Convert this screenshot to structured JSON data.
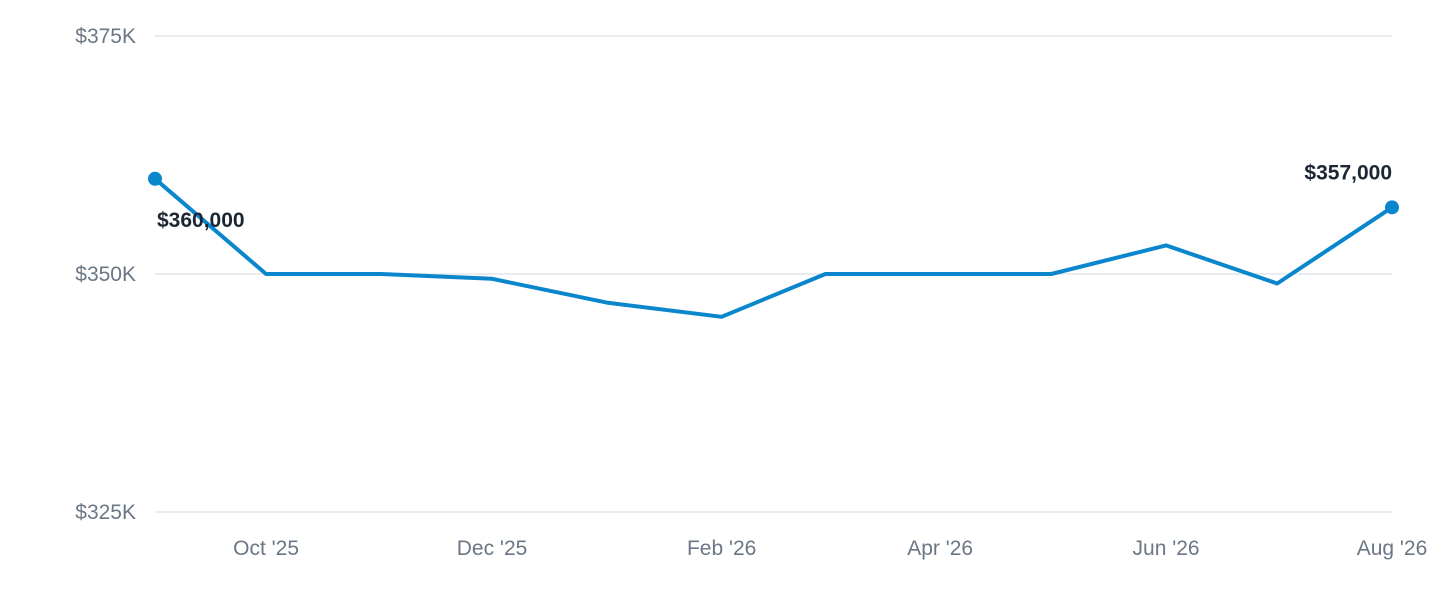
{
  "chart_data": {
    "type": "line",
    "x": [
      "2025-09-01",
      "2025-10-01",
      "2025-11-01",
      "2025-12-01",
      "2026-01-01",
      "2026-02-01",
      "2026-03-01",
      "2026-04-01",
      "2026-05-01",
      "2026-06-01",
      "2026-07-01",
      "2026-08-01"
    ],
    "series": [
      {
        "values": [
          360000,
          350000,
          350000,
          349500,
          347000,
          345500,
          350000,
          350000,
          350000,
          353000,
          349000,
          357000
        ],
        "color": "#0a86cc"
      }
    ],
    "ylim": [
      325000,
      375000
    ],
    "yticks": [
      375000,
      350000,
      325000
    ],
    "ytick_labels": [
      "$375K",
      "$350K",
      "$325K"
    ],
    "xticks": [
      "2025-10-01",
      "2025-12-01",
      "2026-02-01",
      "2026-04-01",
      "2026-06-01",
      "2026-08-01"
    ],
    "xtick_labels": [
      "Oct '25",
      "Dec '25",
      "Feb '26",
      "Apr '26",
      "Jun '26",
      "Aug '26"
    ],
    "data_labels": [
      {
        "index": 0,
        "text": "$360,000"
      },
      {
        "index": 11,
        "text": "$357,000"
      }
    ],
    "grid": true
  }
}
